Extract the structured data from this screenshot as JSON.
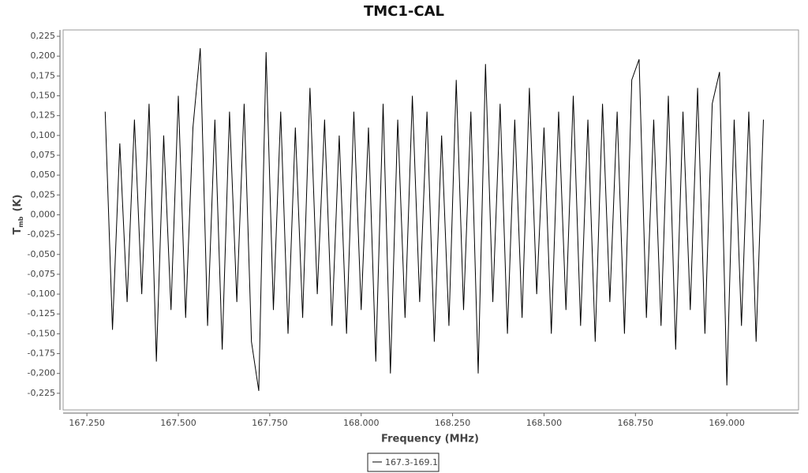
{
  "chart_data": {
    "type": "line",
    "title": "TMC1-CAL",
    "xlabel": "Frequency (MHz)",
    "ylabel": {
      "main": "T",
      "sub": "mb",
      "unit": "(K)"
    },
    "x": [
      167.3,
      167.32,
      167.34,
      167.36,
      167.38,
      167.4,
      167.42,
      167.44,
      167.46,
      167.48,
      167.5,
      167.52,
      167.54,
      167.56,
      167.58,
      167.6,
      167.62,
      167.64,
      167.66,
      167.68,
      167.7,
      167.72,
      167.74,
      167.76,
      167.78,
      167.8,
      167.82,
      167.84,
      167.86,
      167.88,
      167.9,
      167.92,
      167.94,
      167.96,
      167.98,
      168,
      168.02,
      168.04,
      168.06,
      168.08,
      168.1,
      168.12,
      168.14,
      168.16,
      168.18,
      168.2,
      168.22,
      168.24,
      168.26,
      168.28,
      168.3,
      168.32,
      168.34,
      168.36,
      168.38,
      168.4,
      168.42,
      168.44,
      168.46,
      168.48,
      168.5,
      168.52,
      168.54,
      168.56,
      168.58,
      168.6,
      168.62,
      168.64,
      168.66,
      168.68,
      168.7,
      168.72,
      168.74,
      168.76,
      168.78,
      168.8,
      168.82,
      168.84,
      168.86,
      168.88,
      168.9,
      168.92,
      168.94,
      168.96,
      168.98,
      169,
      169.02,
      169.04,
      169.06,
      169.08,
      169.1
    ],
    "series": [
      {
        "name": "167.3-169.1",
        "color": "#000000",
        "values": [
          0.13,
          -0.145,
          0.09,
          -0.11,
          0.12,
          -0.1,
          0.14,
          -0.185,
          0.1,
          -0.12,
          0.15,
          -0.13,
          0.11,
          0.21,
          -0.14,
          0.12,
          -0.17,
          0.13,
          -0.11,
          0.14,
          -0.16,
          -0.222,
          0.205,
          -0.12,
          0.13,
          -0.15,
          0.11,
          -0.13,
          0.16,
          -0.1,
          0.12,
          -0.14,
          0.1,
          -0.15,
          0.13,
          -0.12,
          0.11,
          -0.185,
          0.14,
          -0.2,
          0.12,
          -0.13,
          0.15,
          -0.11,
          0.13,
          -0.16,
          0.1,
          -0.14,
          0.17,
          -0.12,
          0.13,
          -0.2,
          0.19,
          -0.11,
          0.14,
          -0.15,
          0.12,
          -0.13,
          0.16,
          -0.1,
          0.11,
          -0.15,
          0.13,
          -0.12,
          0.15,
          -0.14,
          0.12,
          -0.16,
          0.14,
          -0.11,
          0.13,
          -0.15,
          0.17,
          0.196,
          -0.13,
          0.12,
          -0.14,
          0.15,
          -0.17,
          0.13,
          -0.12,
          0.16,
          -0.15,
          0.14,
          0.18,
          -0.215,
          0.12,
          -0.14,
          0.13,
          -0.16,
          0.12
        ]
      }
    ],
    "xlim": [
      167.185,
      169.196
    ],
    "ylim": [
      -0.246,
      0.233
    ],
    "xticks": [
      {
        "value": 167.25,
        "label": "167.250"
      },
      {
        "value": 167.5,
        "label": "167.500"
      },
      {
        "value": 167.75,
        "label": "167.750"
      },
      {
        "value": 168,
        "label": "168.000"
      },
      {
        "value": 168.25,
        "label": "168.250"
      },
      {
        "value": 168.5,
        "label": "168.500"
      },
      {
        "value": 168.75,
        "label": "168.750"
      },
      {
        "value": 169,
        "label": "169.000"
      }
    ],
    "yticks": [
      {
        "value": -0.225,
        "label": "-0,225"
      },
      {
        "value": -0.2,
        "label": "-0,200"
      },
      {
        "value": -0.175,
        "label": "-0,175"
      },
      {
        "value": -0.15,
        "label": "-0,150"
      },
      {
        "value": -0.125,
        "label": "-0,125"
      },
      {
        "value": -0.1,
        "label": "-0,100"
      },
      {
        "value": -0.075,
        "label": "-0,075"
      },
      {
        "value": -0.05,
        "label": "-0,050"
      },
      {
        "value": -0.025,
        "label": "-0,025"
      },
      {
        "value": 0,
        "label": "0,000"
      },
      {
        "value": 0.025,
        "label": "0,025"
      },
      {
        "value": 0.05,
        "label": "0,050"
      },
      {
        "value": 0.075,
        "label": "0,075"
      },
      {
        "value": 0.1,
        "label": "0,100"
      },
      {
        "value": 0.125,
        "label": "0,125"
      },
      {
        "value": 0.15,
        "label": "0,150"
      },
      {
        "value": 0.175,
        "label": "0,175"
      },
      {
        "value": 0.2,
        "label": "0,200"
      },
      {
        "value": 0.225,
        "label": "0,225"
      }
    ],
    "grid": false,
    "legend": "bottom"
  }
}
